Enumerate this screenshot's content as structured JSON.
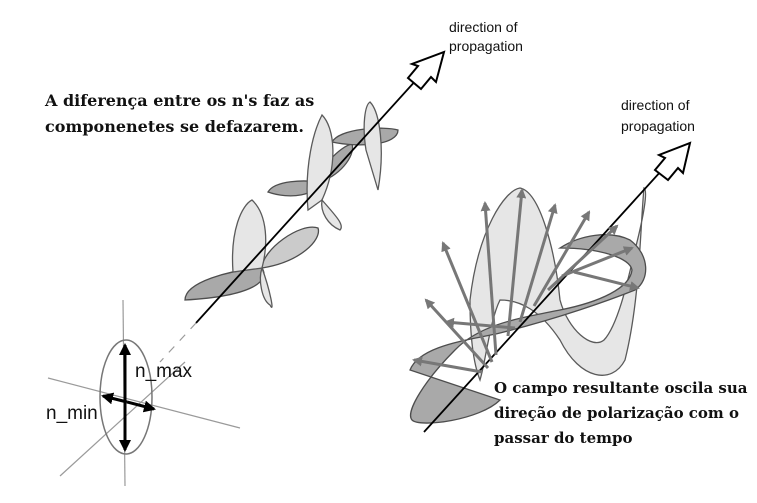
{
  "left_figure": {
    "caption_line1": "A diferença entre os n's faz as",
    "caption_line2": "componenetes se defazarem.",
    "direction_line1": "direction of",
    "direction_line2": "propagation",
    "label_max": "n_max",
    "label_min": "n_min"
  },
  "right_figure": {
    "direction_line1": "direction of",
    "direction_line2": "propagation",
    "caption_line1": "O campo resultante oscila sua",
    "caption_line2": "direção de polarização com o",
    "caption_line3": "passar do tempo"
  },
  "colors": {
    "wave_light": "#e6e6e6",
    "wave_dark": "#a9a9a9",
    "vector": "#777777"
  }
}
